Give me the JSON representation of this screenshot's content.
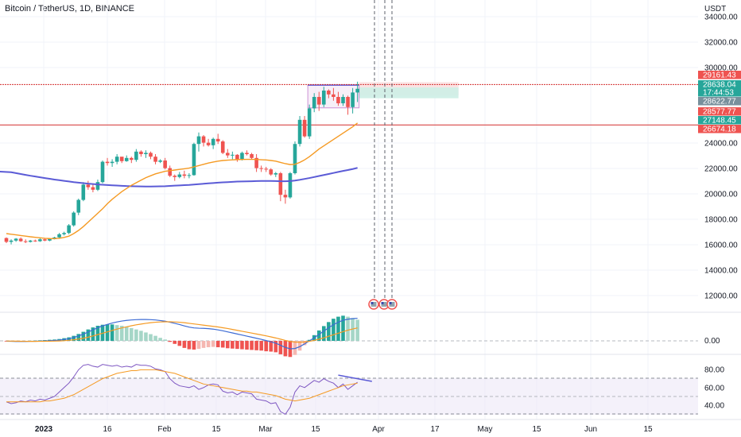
{
  "header": {
    "title": "Bitcoin / TetherUS, 1D, BINANCE",
    "currency": "USDT"
  },
  "colors": {
    "up": "#26a69a",
    "down": "#ef5350",
    "ma_long": "#5b5bd6",
    "ma_short": "#f59a23",
    "macd": "#3d6bd4",
    "signal": "#f59a23",
    "rsi": "#7e57c2",
    "rsi_ma": "#f59a23",
    "tp_zone": "#cdeee6",
    "sl_zone": "#fbe0e0",
    "red_line": "#d32f2f"
  },
  "price_axis": {
    "ticks": [
      "34000.00",
      "32000.00",
      "30000.00",
      "24000.00",
      "22000.00",
      "20000.00",
      "18000.00",
      "16000.00",
      "14000.00",
      "12000.00"
    ]
  },
  "price_tags": [
    {
      "label": "29161.43",
      "color": "#ef5350"
    },
    {
      "label": "28638.04",
      "color": "#26a69a"
    },
    {
      "label": "17:44:53",
      "color": "#26a69a"
    },
    {
      "label": "28622.77",
      "color": "#78909c"
    },
    {
      "label": "28577.77",
      "color": "#ef5350"
    },
    {
      "label": "27148.45",
      "color": "#26a69a"
    },
    {
      "label": "26674.18",
      "color": "#ef5350"
    }
  ],
  "macd_axis": {
    "ticks": [
      "0.00"
    ]
  },
  "rsi_axis": {
    "ticks": [
      "80.00",
      "60.00",
      "40.00"
    ]
  },
  "time_axis": {
    "labels": [
      {
        "text": "2023",
        "bold": true
      },
      {
        "text": "16",
        "bold": false
      },
      {
        "text": "Feb",
        "bold": false
      },
      {
        "text": "15",
        "bold": false
      },
      {
        "text": "Mar",
        "bold": false
      },
      {
        "text": "15",
        "bold": false
      },
      {
        "text": "Apr",
        "bold": false
      },
      {
        "text": "17",
        "bold": false
      },
      {
        "text": "May",
        "bold": false
      },
      {
        "text": "15",
        "bold": false
      },
      {
        "text": "Jun",
        "bold": false
      },
      {
        "text": "15",
        "bold": false
      }
    ]
  },
  "chart_data": [
    {
      "type": "candlestick",
      "title": "Bitcoin / TetherUS, 1D, BINANCE",
      "ylim": [
        11000,
        35000
      ],
      "start": "2022-12-26",
      "ohlc": [
        [
          16900,
          16950,
          16500,
          16600
        ],
        [
          16600,
          16800,
          16400,
          16700
        ],
        [
          16700,
          16900,
          16600,
          16850
        ],
        [
          16850,
          16950,
          16600,
          16650
        ],
        [
          16650,
          16800,
          16500,
          16600
        ],
        [
          16600,
          16750,
          16550,
          16700
        ],
        [
          16700,
          16780,
          16600,
          16650
        ],
        [
          16650,
          16900,
          16600,
          16800
        ],
        [
          16800,
          16850,
          16650,
          16700
        ],
        [
          16700,
          16900,
          16650,
          16850
        ],
        [
          16850,
          17000,
          16800,
          16950
        ],
        [
          16950,
          17300,
          16900,
          17200
        ],
        [
          17200,
          17400,
          17100,
          17300
        ],
        [
          17300,
          18000,
          17200,
          17900
        ],
        [
          17900,
          19000,
          17800,
          18900
        ],
        [
          18900,
          20000,
          18700,
          19900
        ],
        [
          19900,
          21300,
          19800,
          21100
        ],
        [
          21100,
          21400,
          20700,
          20900
        ],
        [
          20900,
          21100,
          20500,
          20700
        ],
        [
          20700,
          21500,
          20600,
          21300
        ],
        [
          21300,
          23000,
          21200,
          22900
        ],
        [
          22900,
          23200,
          22600,
          22800
        ],
        [
          22800,
          23100,
          22500,
          22900
        ],
        [
          22900,
          23500,
          22700,
          23300
        ],
        [
          23300,
          23200,
          22800,
          22950
        ],
        [
          22950,
          23400,
          22900,
          23200
        ],
        [
          23200,
          23300,
          22800,
          23050
        ],
        [
          23050,
          23900,
          22900,
          23700
        ],
        [
          23700,
          23800,
          23300,
          23500
        ],
        [
          23500,
          23800,
          23200,
          23600
        ],
        [
          23600,
          23700,
          23100,
          23300
        ],
        [
          23300,
          23500,
          22700,
          22900
        ],
        [
          22900,
          23100,
          22800,
          23000
        ],
        [
          23000,
          23200,
          22300,
          22400
        ],
        [
          22400,
          22600,
          21700,
          21800
        ],
        [
          21800,
          21900,
          21400,
          21700
        ],
        [
          21700,
          22100,
          21600,
          21900
        ],
        [
          21900,
          22200,
          21600,
          21800
        ],
        [
          21800,
          22000,
          21600,
          21850
        ],
        [
          21850,
          24400,
          21800,
          24300
        ],
        [
          24300,
          25200,
          23700,
          24900
        ],
        [
          24900,
          25000,
          24100,
          24400
        ],
        [
          24400,
          24700,
          24100,
          24200
        ],
        [
          24200,
          24800,
          23900,
          24700
        ],
        [
          24700,
          25100,
          24300,
          24500
        ],
        [
          24500,
          24600,
          23500,
          23600
        ],
        [
          23600,
          23900,
          23200,
          23400
        ],
        [
          23400,
          23700,
          23100,
          23450
        ],
        [
          23450,
          23500,
          22900,
          23100
        ],
        [
          23100,
          23700,
          23000,
          23600
        ],
        [
          23600,
          23800,
          23400,
          23500
        ],
        [
          23500,
          23600,
          23100,
          23200
        ],
        [
          23200,
          23500,
          22100,
          22400
        ],
        [
          22400,
          22600,
          22100,
          22350
        ],
        [
          22350,
          22500,
          22100,
          22300
        ],
        [
          22300,
          22400,
          21800,
          21900
        ],
        [
          21900,
          22100,
          21700,
          22000
        ],
        [
          22000,
          22100,
          19800,
          20300
        ],
        [
          20300,
          20700,
          19600,
          20100
        ],
        [
          20100,
          22100,
          20000,
          22000
        ],
        [
          22000,
          24500,
          21900,
          24300
        ],
        [
          24300,
          26500,
          24100,
          26200
        ],
        [
          26200,
          26500,
          24800,
          24900
        ],
        [
          24900,
          27400,
          24700,
          27100
        ],
        [
          27100,
          28300,
          26800,
          28000
        ],
        [
          28000,
          28400,
          26900,
          27400
        ],
        [
          27400,
          28800,
          27200,
          28500
        ],
        [
          28500,
          28600,
          27900,
          28200
        ],
        [
          28200,
          28700,
          27700,
          28000
        ],
        [
          28000,
          28400,
          27300,
          27500
        ],
        [
          27500,
          28200,
          27300,
          28000
        ],
        [
          28000,
          28100,
          26600,
          27200
        ],
        [
          27200,
          28700,
          26700,
          28350
        ],
        [
          28350,
          29200,
          27600,
          28640
        ]
      ],
      "series": [
        {
          "name": "",
          "values": [
            22150,
            22080,
            22010,
            21940,
            21870,
            21800,
            21740,
            21680,
            21620,
            21560,
            21500,
            21450,
            21400,
            21350,
            21300,
            21260,
            21220,
            21180,
            21150,
            21120,
            21090,
            21070,
            21050,
            21030,
            21010,
            20990,
            20980,
            20970,
            20960,
            20950,
            20950,
            20960,
            20970,
            20980,
            21000,
            21020,
            21040,
            21060,
            21080,
            21110,
            21140,
            21170,
            21200,
            21230,
            21260,
            21280,
            21300,
            21320,
            21340,
            21350,
            21360,
            21370,
            21380,
            21390,
            21390,
            21390,
            21380,
            21370,
            21370,
            21380,
            21420,
            21480,
            21550,
            21620,
            21700,
            21780,
            21860,
            21940,
            22020,
            22100,
            22180,
            22250,
            22330,
            22420
          ]
        },
        {
          "name": "",
          "values": [
            17250,
            17200,
            17150,
            17100,
            17050,
            17000,
            16960,
            16920,
            16880,
            16860,
            16850,
            16880,
            16950,
            17050,
            17250,
            17500,
            17800,
            18150,
            18500,
            18850,
            19200,
            19600,
            19950,
            20250,
            20550,
            20800,
            21050,
            21250,
            21450,
            21650,
            21800,
            21950,
            22050,
            22150,
            22200,
            22250,
            22300,
            22350,
            22400,
            22500,
            22600,
            22700,
            22800,
            22880,
            22950,
            23000,
            23030,
            23050,
            23070,
            23080,
            23090,
            23090,
            23080,
            23060,
            23040,
            23000,
            22950,
            22850,
            22750,
            22680,
            22700,
            22850,
            23050,
            23300,
            23600,
            23900,
            24150,
            24400,
            24650,
            24900,
            25150,
            25400,
            25650,
            25950
          ]
        }
      ],
      "annotations": {
        "lines": [
          29161.43,
          26674.18
        ],
        "long_position": {
          "entry": 27148.45,
          "target": 28622.77,
          "stop": 26674.18
        },
        "range_box": [
          27140,
          28930
        ]
      }
    },
    {
      "type": "line",
      "ylim": [
        -1400,
        2000
      ],
      "series": [
        {
          "name": "",
          "values": [
            -20,
            -30,
            -40,
            -40,
            -40,
            -30,
            -25,
            -15,
            -5,
            10,
            25,
            50,
            90,
            140,
            220,
            320,
            440,
            580,
            720,
            860,
            980,
            1080,
            1170,
            1240,
            1300,
            1340,
            1370,
            1390,
            1400,
            1400,
            1390,
            1370,
            1330,
            1290,
            1220,
            1150,
            1070,
            980,
            900,
            850,
            830,
            820,
            800,
            770,
            720,
            660,
            590,
            520,
            450,
            380,
            310,
            240,
            170,
            100,
            20,
            -60,
            -150,
            -290,
            -430,
            -520,
            -500,
            -380,
            -200,
            0,
            200,
            420,
            640,
            860,
            1060,
            1220,
            1350,
            1420,
            1460,
            1480
          ]
        },
        {
          "name": "",
          "values": [
            -10,
            -15,
            -20,
            -25,
            -30,
            -32,
            -32,
            -30,
            -27,
            -22,
            -15,
            -5,
            10,
            35,
            70,
            115,
            170,
            240,
            320,
            410,
            500,
            590,
            680,
            770,
            850,
            920,
            990,
            1050,
            1100,
            1150,
            1190,
            1220,
            1240,
            1250,
            1250,
            1240,
            1220,
            1190,
            1150,
            1110,
            1070,
            1030,
            990,
            950,
            910,
            860,
            810,
            750,
            690,
            630,
            570,
            510,
            450,
            390,
            330,
            260,
            190,
            110,
            30,
            -40,
            -80,
            -90,
            -70,
            -30,
            30,
            110,
            200,
            300,
            400,
            500,
            600,
            700,
            780,
            850
          ]
        }
      ]
    },
    {
      "type": "line",
      "ylim": [
        28,
        100
      ],
      "series": [
        {
          "name": "",
          "values": [
            44,
            42,
            43,
            45,
            44,
            46,
            45,
            47,
            46,
            48,
            50,
            55,
            60,
            65,
            72,
            80,
            85,
            86,
            84,
            83,
            86,
            85,
            84,
            85,
            83,
            84,
            83,
            86,
            85,
            85,
            84,
            81,
            80,
            78,
            70,
            65,
            62,
            61,
            60,
            62,
            58,
            60,
            63,
            64,
            63,
            56,
            54,
            55,
            52,
            55,
            54,
            53,
            47,
            46,
            45,
            42,
            43,
            33,
            30,
            38,
            55,
            62,
            60,
            64,
            68,
            66,
            70,
            67,
            65,
            60,
            64,
            58,
            62,
            66
          ]
        },
        {
          "name": "",
          "values": [
            44,
            44,
            44,
            44,
            44,
            44,
            44,
            44,
            45,
            45,
            46,
            47,
            48,
            50,
            52,
            55,
            58,
            61,
            64,
            67,
            70,
            72,
            74,
            76,
            77,
            78,
            79,
            79,
            80,
            80,
            80,
            80,
            79,
            78,
            77,
            76,
            74,
            72,
            70,
            68,
            66,
            64,
            63,
            62,
            61,
            60,
            59,
            58,
            57,
            56,
            56,
            55,
            55,
            54,
            53,
            52,
            51,
            49,
            47,
            46,
            45,
            46,
            47,
            48,
            50,
            52,
            54,
            56,
            58,
            60,
            62,
            63,
            64,
            65
          ]
        }
      ],
      "bands": [
        70,
        30
      ],
      "midline": 50
    }
  ]
}
